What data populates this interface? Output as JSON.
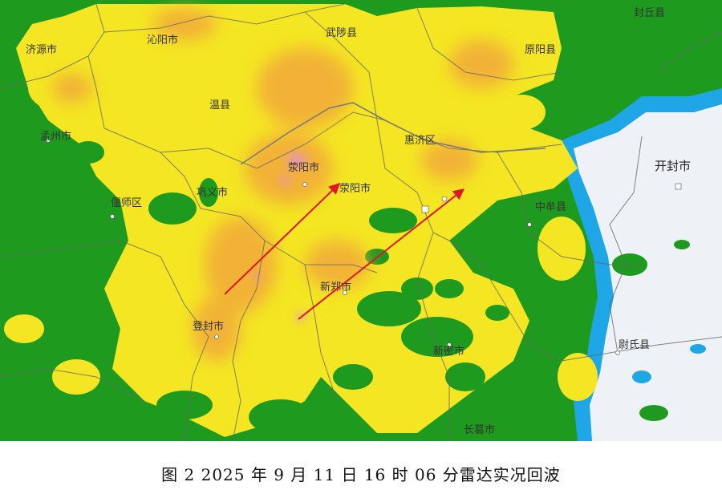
{
  "caption": "图 2 2025 年 9 月 11 日 16 时 06 分雷达实况回波",
  "places": {
    "qinyang": "沁阳市",
    "wuzhi": "武陟县",
    "yuanyang": "原阳县",
    "wenxian": "温县",
    "jiyuan": "济源市",
    "mengzhou": "孟州市",
    "huiji": "惠济区",
    "xingyang": "荥阳市",
    "zhengzhou": "荥阳市",
    "gongyi": "巩义市",
    "yanshi": "偃师区",
    "kaifeng": "开封市",
    "zhongmou": "中牟县",
    "xinzheng": "新郑市",
    "dengfeng": "登封市",
    "weishi": "尉氏县",
    "xinmi": "新密市",
    "fengqiu": "封丘县",
    "changge": "长葛市"
  },
  "colors": {
    "green": "#1e9a1e",
    "yellow": "#f4e622",
    "orange": "#f2a93a",
    "blue": "#1fa6e6",
    "clear": "#eef1f5",
    "arrow": "#e0162b"
  }
}
